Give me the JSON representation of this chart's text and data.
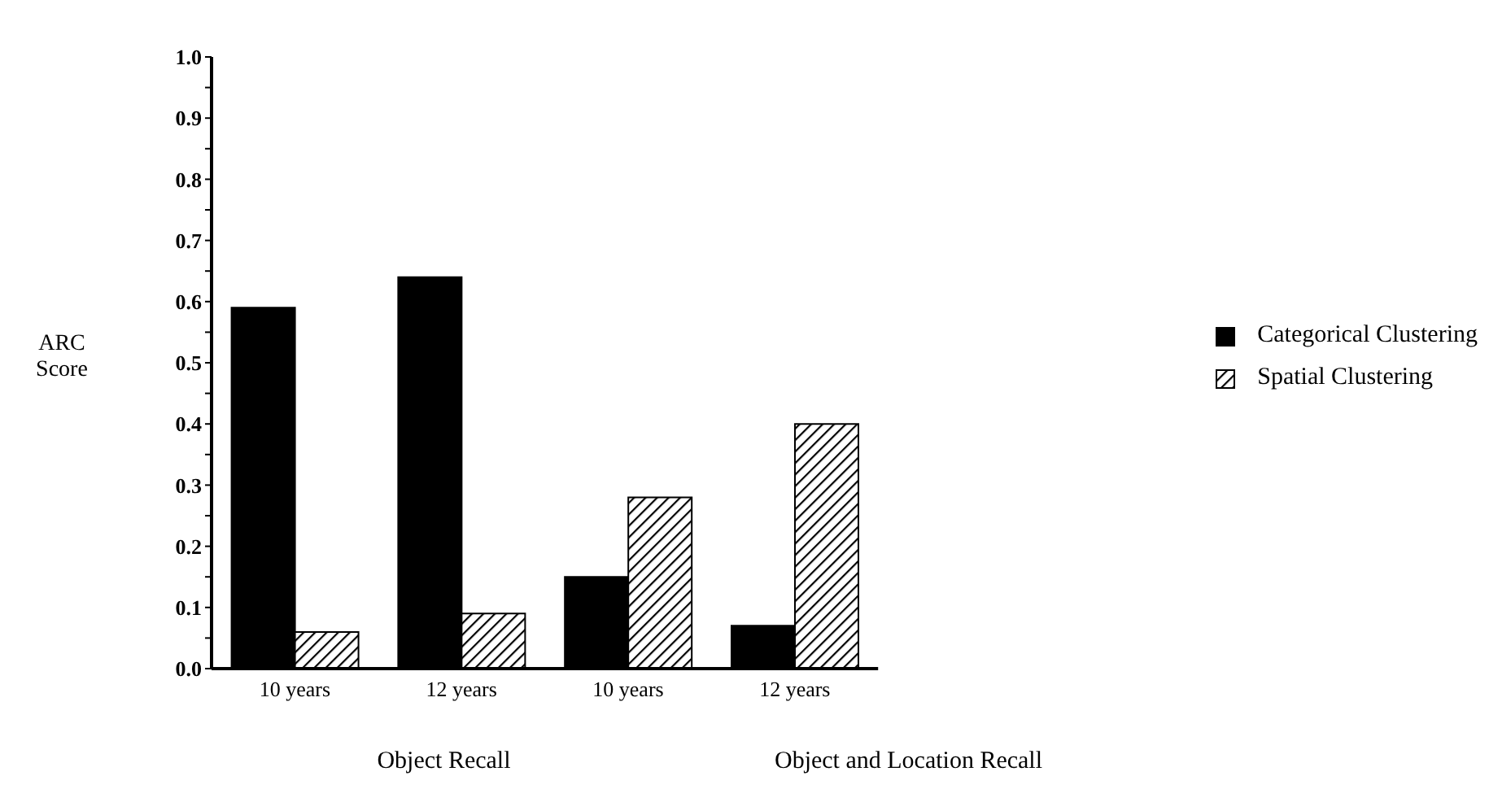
{
  "chart_data": {
    "type": "bar",
    "ylabel": "ARC Score",
    "categories": [
      "10 years",
      "12 years",
      "10 years",
      "12 years"
    ],
    "series": [
      {
        "name": "Categorical Clustering",
        "color": "#000000",
        "values": [
          0.59,
          0.64,
          0.15,
          0.07
        ]
      },
      {
        "name": "Spatial Clustering",
        "color": "#000000",
        "values": [
          0.06,
          0.09,
          0.28,
          0.4
        ]
      }
    ],
    "ylim": [
      0,
      1
    ],
    "yticks": [
      {
        "value": 0,
        "label": "0.0"
      },
      {
        "value": 0.05,
        "label": null
      },
      0.1,
      {
        "value": 0.15,
        "label": null
      },
      0.2,
      {
        "value": 0.25,
        "label": null
      },
      0.3,
      {
        "value": 0.35,
        "label": null
      },
      0.4,
      {
        "value": 0.45,
        "label": null
      },
      0.5,
      {
        "value": 0.55,
        "label": null
      },
      0.6,
      {
        "value": 0.65,
        "label": null
      },
      0.7,
      {
        "value": 0.75,
        "label": null
      },
      0.8,
      {
        "value": 0.85,
        "label": null
      },
      0.9,
      {
        "value": 0.95,
        "label": null
      },
      {
        "value": 1,
        "label": "1.0"
      }
    ],
    "annotations": [
      "Object Recall",
      "Object and Location Recall"
    ],
    "legend": "right",
    "grid": false
  }
}
